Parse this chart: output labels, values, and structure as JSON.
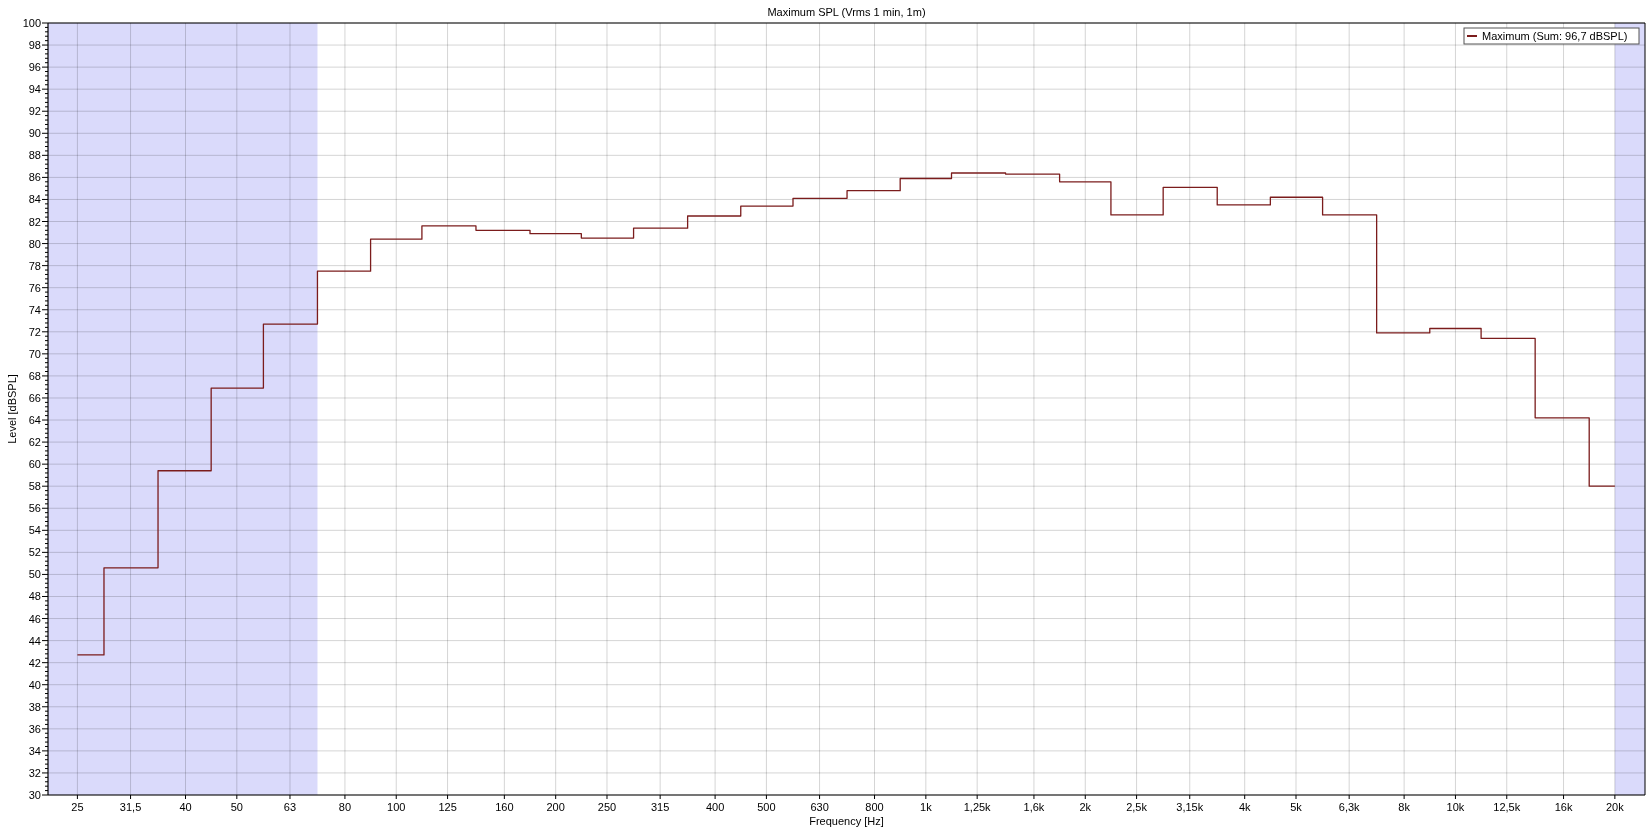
{
  "chart_data": {
    "type": "step",
    "title": "Maximum SPL (Vrms 1 min, 1m)",
    "xlabel": "Frequency [Hz]",
    "ylabel": "Level [dBSPL]",
    "x": [
      25,
      31.5,
      40,
      50,
      63,
      80,
      100,
      125,
      160,
      200,
      250,
      315,
      400,
      500,
      630,
      800,
      1000,
      1250,
      1600,
      2000,
      2500,
      3150,
      4000,
      5000,
      6300,
      8000,
      10000,
      12500,
      16000,
      20000
    ],
    "series": [
      {
        "name": "Maximum (Sum: 96,7 dBSPL)",
        "color": "#7b1c1c",
        "values": [
          42.7,
          50.6,
          59.4,
          66.9,
          72.7,
          77.5,
          80.4,
          81.6,
          81.2,
          80.9,
          80.5,
          81.4,
          82.5,
          83.4,
          84.1,
          84.8,
          85.9,
          86.4,
          86.3,
          85.6,
          82.6,
          85.1,
          83.5,
          84.2,
          82.6,
          71.9,
          72.3,
          71.4,
          64.2,
          58.0
        ]
      }
    ],
    "log": "x",
    "xlim": [
      22,
      22800
    ],
    "xticks": [
      25,
      {
        "value": 31.5,
        "label": "31,5"
      },
      40,
      50,
      63,
      80,
      100,
      125,
      160,
      200,
      250,
      315,
      400,
      500,
      630,
      800,
      {
        "value": 1000,
        "label": "1k"
      },
      {
        "value": 1250,
        "label": "1,25k"
      },
      {
        "value": 1600,
        "label": "1,6k"
      },
      {
        "value": 2000,
        "label": "2k"
      },
      {
        "value": 2500,
        "label": "2,5k"
      },
      {
        "value": 3150,
        "label": "3,15k"
      },
      {
        "value": 4000,
        "label": "4k"
      },
      {
        "value": 5000,
        "label": "5k"
      },
      {
        "value": 6300,
        "label": "6,3k"
      },
      {
        "value": 8000,
        "label": "8k"
      },
      {
        "value": 10000,
        "label": "10k"
      },
      {
        "value": 12500,
        "label": "12,5k"
      },
      {
        "value": 16000,
        "label": "16k"
      },
      {
        "value": 20000,
        "label": "20k"
      }
    ],
    "ylim": [
      30,
      100
    ],
    "yticks": [
      30,
      {
        "value": 30.4,
        "label": null
      },
      {
        "value": 30.8,
        "label": null
      },
      {
        "value": 31.2,
        "label": null
      },
      {
        "value": 31.6,
        "label": null
      },
      32,
      {
        "value": 32.4,
        "label": null
      },
      {
        "value": 32.8,
        "label": null
      },
      {
        "value": 33.2,
        "label": null
      },
      {
        "value": 33.6,
        "label": null
      },
      34,
      {
        "value": 34.4,
        "label": null
      },
      {
        "value": 34.8,
        "label": null
      },
      {
        "value": 35.2,
        "label": null
      },
      {
        "value": 35.6,
        "label": null
      },
      36,
      {
        "value": 36.4,
        "label": null
      },
      {
        "value": 36.8,
        "label": null
      },
      {
        "value": 37.2,
        "label": null
      },
      {
        "value": 37.6,
        "label": null
      },
      38,
      {
        "value": 38.4,
        "label": null
      },
      {
        "value": 38.8,
        "label": null
      },
      {
        "value": 39.2,
        "label": null
      },
      {
        "value": 39.6,
        "label": null
      },
      40,
      {
        "value": 40.4,
        "label": null
      },
      {
        "value": 40.8,
        "label": null
      },
      {
        "value": 41.2,
        "label": null
      },
      {
        "value": 41.6,
        "label": null
      },
      42,
      {
        "value": 42.4,
        "label": null
      },
      {
        "value": 42.8,
        "label": null
      },
      {
        "value": 43.2,
        "label": null
      },
      {
        "value": 43.6,
        "label": null
      },
      44,
      {
        "value": 44.4,
        "label": null
      },
      {
        "value": 44.8,
        "label": null
      },
      {
        "value": 45.2,
        "label": null
      },
      {
        "value": 45.6,
        "label": null
      },
      46,
      {
        "value": 46.4,
        "label": null
      },
      {
        "value": 46.8,
        "label": null
      },
      {
        "value": 47.2,
        "label": null
      },
      {
        "value": 47.6,
        "label": null
      },
      48,
      {
        "value": 48.4,
        "label": null
      },
      {
        "value": 48.8,
        "label": null
      },
      {
        "value": 49.2,
        "label": null
      },
      {
        "value": 49.6,
        "label": null
      },
      50,
      {
        "value": 50.4,
        "label": null
      },
      {
        "value": 50.8,
        "label": null
      },
      {
        "value": 51.2,
        "label": null
      },
      {
        "value": 51.6,
        "label": null
      },
      52,
      {
        "value": 52.4,
        "label": null
      },
      {
        "value": 52.8,
        "label": null
      },
      {
        "value": 53.2,
        "label": null
      },
      {
        "value": 53.6,
        "label": null
      },
      54,
      {
        "value": 54.4,
        "label": null
      },
      {
        "value": 54.8,
        "label": null
      },
      {
        "value": 55.2,
        "label": null
      },
      {
        "value": 55.6,
        "label": null
      },
      56,
      {
        "value": 56.4,
        "label": null
      },
      {
        "value": 56.8,
        "label": null
      },
      {
        "value": 57.2,
        "label": null
      },
      {
        "value": 57.6,
        "label": null
      },
      58,
      {
        "value": 58.4,
        "label": null
      },
      {
        "value": 58.8,
        "label": null
      },
      {
        "value": 59.2,
        "label": null
      },
      {
        "value": 59.6,
        "label": null
      },
      60,
      {
        "value": 60.4,
        "label": null
      },
      {
        "value": 60.8,
        "label": null
      },
      {
        "value": 61.2,
        "label": null
      },
      {
        "value": 61.6,
        "label": null
      },
      62,
      {
        "value": 62.4,
        "label": null
      },
      {
        "value": 62.8,
        "label": null
      },
      {
        "value": 63.2,
        "label": null
      },
      {
        "value": 63.6,
        "label": null
      },
      64,
      {
        "value": 64.4,
        "label": null
      },
      {
        "value": 64.8,
        "label": null
      },
      {
        "value": 65.2,
        "label": null
      },
      {
        "value": 65.6,
        "label": null
      },
      66,
      {
        "value": 66.4,
        "label": null
      },
      {
        "value": 66.8,
        "label": null
      },
      {
        "value": 67.2,
        "label": null
      },
      {
        "value": 67.6,
        "label": null
      },
      68,
      {
        "value": 68.4,
        "label": null
      },
      {
        "value": 68.8,
        "label": null
      },
      {
        "value": 69.2,
        "label": null
      },
      {
        "value": 69.6,
        "label": null
      },
      70,
      {
        "value": 70.4,
        "label": null
      },
      {
        "value": 70.8,
        "label": null
      },
      {
        "value": 71.2,
        "label": null
      },
      {
        "value": 71.6,
        "label": null
      },
      72,
      {
        "value": 72.4,
        "label": null
      },
      {
        "value": 72.8,
        "label": null
      },
      {
        "value": 73.2,
        "label": null
      },
      {
        "value": 73.6,
        "label": null
      },
      74,
      {
        "value": 74.4,
        "label": null
      },
      {
        "value": 74.8,
        "label": null
      },
      {
        "value": 75.2,
        "label": null
      },
      {
        "value": 75.6,
        "label": null
      },
      76,
      {
        "value": 76.4,
        "label": null
      },
      {
        "value": 76.8,
        "label": null
      },
      {
        "value": 77.2,
        "label": null
      },
      {
        "value": 77.6,
        "label": null
      },
      78,
      {
        "value": 78.4,
        "label": null
      },
      {
        "value": 78.8,
        "label": null
      },
      {
        "value": 79.2,
        "label": null
      },
      {
        "value": 79.6,
        "label": null
      },
      80,
      {
        "value": 80.4,
        "label": null
      },
      {
        "value": 80.8,
        "label": null
      },
      {
        "value": 81.2,
        "label": null
      },
      {
        "value": 81.6,
        "label": null
      },
      82,
      {
        "value": 82.4,
        "label": null
      },
      {
        "value": 82.8,
        "label": null
      },
      {
        "value": 83.2,
        "label": null
      },
      {
        "value": 83.6,
        "label": null
      },
      84,
      {
        "value": 84.4,
        "label": null
      },
      {
        "value": 84.8,
        "label": null
      },
      {
        "value": 85.2,
        "label": null
      },
      {
        "value": 85.6,
        "label": null
      },
      86,
      {
        "value": 86.4,
        "label": null
      },
      {
        "value": 86.8,
        "label": null
      },
      {
        "value": 87.2,
        "label": null
      },
      {
        "value": 87.6,
        "label": null
      },
      88,
      {
        "value": 88.4,
        "label": null
      },
      {
        "value": 88.8,
        "label": null
      },
      {
        "value": 89.2,
        "label": null
      },
      {
        "value": 89.6,
        "label": null
      },
      90,
      {
        "value": 90.4,
        "label": null
      },
      {
        "value": 90.8,
        "label": null
      },
      {
        "value": 91.2,
        "label": null
      },
      {
        "value": 91.6,
        "label": null
      },
      92,
      {
        "value": 92.4,
        "label": null
      },
      {
        "value": 92.8,
        "label": null
      },
      {
        "value": 93.2,
        "label": null
      },
      {
        "value": 93.6,
        "label": null
      },
      94,
      {
        "value": 94.4,
        "label": null
      },
      {
        "value": 94.8,
        "label": null
      },
      {
        "value": 95.2,
        "label": null
      },
      {
        "value": 95.6,
        "label": null
      },
      96,
      {
        "value": 96.4,
        "label": null
      },
      {
        "value": 96.8,
        "label": null
      },
      {
        "value": 97.2,
        "label": null
      },
      {
        "value": 97.6,
        "label": null
      },
      98,
      {
        "value": 98.4,
        "label": null
      },
      {
        "value": 98.8,
        "label": null
      },
      {
        "value": 99.2,
        "label": null
      },
      {
        "value": 99.6,
        "label": null
      },
      100
    ],
    "grid": true,
    "legend": "top right",
    "bands": [
      {
        "axis": "x",
        "from": 22,
        "to": 71,
        "color": "#dadafb"
      },
      {
        "axis": "x",
        "from": 20000,
        "to": 22800,
        "color": "#dadafb"
      }
    ]
  }
}
